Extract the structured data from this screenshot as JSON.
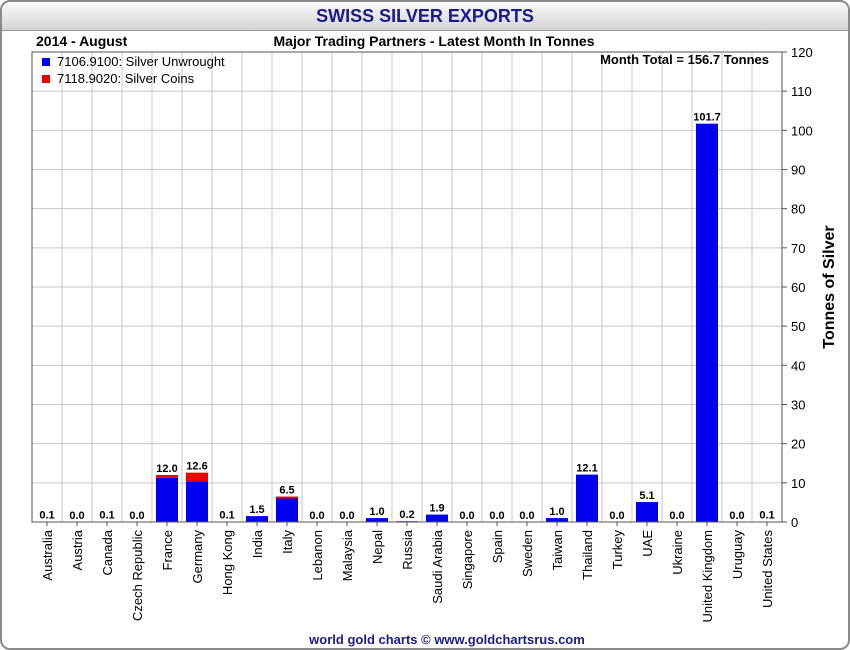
{
  "header": {
    "title": "SWISS SILVER EXPORTS",
    "period": "2014 - August",
    "subtitle": "Major Trading Partners - Latest Month In Tonnes",
    "month_total": "Month Total = 156.7 Tonnes",
    "footer": "world gold charts © www.goldchartsrus.com"
  },
  "colors": {
    "unwrought": "#0000ee",
    "coins": "#ee0000",
    "grid": "#c8c8c8",
    "title": "#1a1a8c"
  },
  "chart_data": {
    "type": "bar",
    "stacked": true,
    "title": "SWISS SILVER EXPORTS",
    "subtitle": "Major Trading Partners - Latest Month In Tonnes",
    "ylabel": "Tonnes of Silver",
    "ylim": [
      0,
      120
    ],
    "yticks": [
      0,
      10,
      20,
      30,
      40,
      50,
      60,
      70,
      80,
      90,
      100,
      110,
      120
    ],
    "grid": true,
    "legend_position": "top-left",
    "categories": [
      "Australia",
      "Austria",
      "Canada",
      "Czech Republic",
      "France",
      "Germany",
      "Hong Kong",
      "India",
      "Italy",
      "Lebanon",
      "Malaysia",
      "Nepal",
      "Russia",
      "Saudi Arabia",
      "Singapore",
      "Spain",
      "Sweden",
      "Taiwan",
      "Thailand",
      "Turkey",
      "UAE",
      "Ukraine",
      "United Kingdom",
      "Uruguay",
      "United States"
    ],
    "series": [
      {
        "name": "7106.9100: Silver Unwrought",
        "values": [
          0.1,
          0.0,
          0.1,
          0.0,
          11.3,
          10.4,
          0.1,
          1.5,
          6.0,
          0.0,
          0.0,
          1.0,
          0.2,
          1.9,
          0.0,
          0.0,
          0.0,
          1.0,
          12.1,
          0.0,
          5.1,
          0.0,
          101.7,
          0.0,
          0.1
        ]
      },
      {
        "name": "7118.9020: Silver Coins",
        "values": [
          0.0,
          0.0,
          0.0,
          0.0,
          0.7,
          2.2,
          0.0,
          0.0,
          0.5,
          0.0,
          0.0,
          0.0,
          0.0,
          0.0,
          0.0,
          0.0,
          0.0,
          0.0,
          0.0,
          0.0,
          0.0,
          0.0,
          0.0,
          0.0,
          0.0
        ]
      }
    ],
    "totals": [
      "0.1",
      "0.0",
      "0.1",
      "0.0",
      "12.0",
      "12.6",
      "0.1",
      "1.5",
      "6.5",
      "0.0",
      "0.0",
      "1.0",
      "0.2",
      "1.9",
      "0.0",
      "0.0",
      "0.0",
      "1.0",
      "12.1",
      "0.0",
      "5.1",
      "0.0",
      "101.7",
      "0.0",
      "0.1"
    ]
  }
}
